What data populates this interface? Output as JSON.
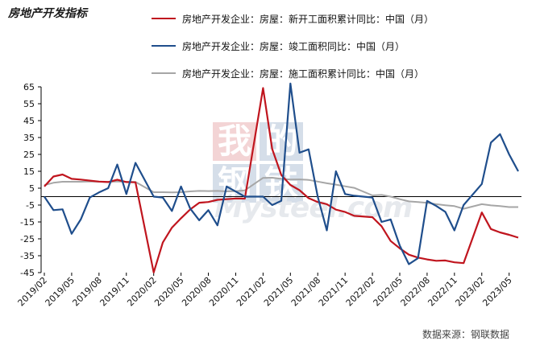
{
  "title": "房地产开发指标",
  "source": "数据来源：钢联数据",
  "watermark": {
    "cn": [
      "我",
      "的",
      "钢",
      "铁"
    ],
    "en": "Mysteel.com"
  },
  "colors": {
    "new_start": "#c0151e",
    "completed": "#1f4e8c",
    "under_construction": "#a6a6a6",
    "zero_line": "#000000"
  },
  "chart_data": {
    "type": "line",
    "title": "房地产开发指标",
    "ylim": [
      -45,
      65
    ],
    "yticks": [
      65,
      55,
      45,
      35,
      25,
      15,
      5,
      -5,
      -15,
      -25,
      -35,
      -45
    ],
    "x": [
      "2019/02",
      "2019/03",
      "2019/04",
      "2019/05",
      "2019/06",
      "2019/07",
      "2019/08",
      "2019/09",
      "2019/10",
      "2019/11",
      "2019/12",
      "2020/01",
      "2020/02",
      "2020/03",
      "2020/04",
      "2020/05",
      "2020/06",
      "2020/07",
      "2020/08",
      "2020/09",
      "2020/10",
      "2020/11",
      "2020/12",
      "2021/01",
      "2021/02",
      "2021/03",
      "2021/04",
      "2021/05",
      "2021/06",
      "2021/07",
      "2021/08",
      "2021/09",
      "2021/10",
      "2021/11",
      "2021/12",
      "2022/01",
      "2022/02",
      "2022/03",
      "2022/04",
      "2022/05",
      "2022/06",
      "2022/07",
      "2022/08",
      "2022/09",
      "2022/10",
      "2022/11",
      "2022/12",
      "2023/01",
      "2023/02",
      "2023/03",
      "2023/04",
      "2023/05",
      "2023/06"
    ],
    "xtick_labels": [
      "2019/02",
      "2019/05",
      "2019/08",
      "2019/11",
      "2020/02",
      "2020/05",
      "2020/08",
      "2020/11",
      "2021/02",
      "2021/05",
      "2021/08",
      "2021/11",
      "2022/02",
      "2022/05",
      "2022/08",
      "2022/11",
      "2023/02",
      "2023/05"
    ],
    "series": [
      {
        "name": "房地产开发企业：房屋：新开工面积累计同比：中国（月）",
        "color_key": "new_start",
        "values": [
          6,
          11.9,
          13.1,
          10.5,
          10.1,
          9.5,
          8.9,
          8.6,
          10,
          8.6,
          8.5,
          null,
          -44.9,
          -27.2,
          -18.4,
          -12.8,
          -7.6,
          -3.6,
          -3.2,
          -1.9,
          -1.5,
          -1.1,
          -1.2,
          null,
          64.3,
          28.2,
          12.8,
          6.9,
          3.8,
          -0.9,
          -3.2,
          -4.5,
          -7.7,
          -9.1,
          -11.4,
          null,
          -12.2,
          -17.5,
          -26.3,
          -30.6,
          -34.4,
          -36.1,
          -37.2,
          -38,
          -37.8,
          -38.9,
          -39.4,
          null,
          -9.4,
          -19.2,
          -21.2,
          -22.6,
          -24.3
        ]
      },
      {
        "name": "房地产开发企业：房屋：竣工面积同比：中国（月）",
        "color_key": "completed",
        "values": [
          0,
          -8,
          -7.5,
          -22,
          -13.5,
          -0.5,
          2.5,
          5,
          19,
          1.5,
          20,
          null,
          0,
          -0.5,
          -8.5,
          6,
          -7,
          -14,
          -8,
          -17,
          6,
          3,
          0,
          null,
          0,
          -5,
          -2.5,
          67,
          26,
          28,
          0,
          -20,
          15,
          1.5,
          0.5,
          null,
          -0.5,
          -15,
          -13.5,
          -29,
          -40,
          -36.5,
          -2.5,
          -5.5,
          -9,
          -20,
          -5,
          null,
          7.5,
          32,
          37,
          25,
          15
        ]
      },
      {
        "name": "房地产开发企业：房屋：施工面积累计同比：中国（月）",
        "color_key": "under_construction",
        "values": [
          6.8,
          8.2,
          8.8,
          8.8,
          8.8,
          9,
          8.8,
          8.7,
          9,
          8.7,
          8.7,
          null,
          2.6,
          2.6,
          2.5,
          2.6,
          3.1,
          3.4,
          3.3,
          3.4,
          3.1,
          3.2,
          3.7,
          null,
          11.1,
          11.2,
          10.5,
          10.1,
          10.2,
          9.9,
          8.9,
          7.9,
          7.1,
          6.1,
          5.2,
          null,
          0.7,
          1,
          0,
          -1.5,
          -2.8,
          -3.2,
          -3.7,
          -4.5,
          -5.1,
          -5.6,
          -7.2,
          null,
          -4.5,
          -5.2,
          -5.6,
          -6.2,
          -6.2
        ]
      }
    ]
  }
}
